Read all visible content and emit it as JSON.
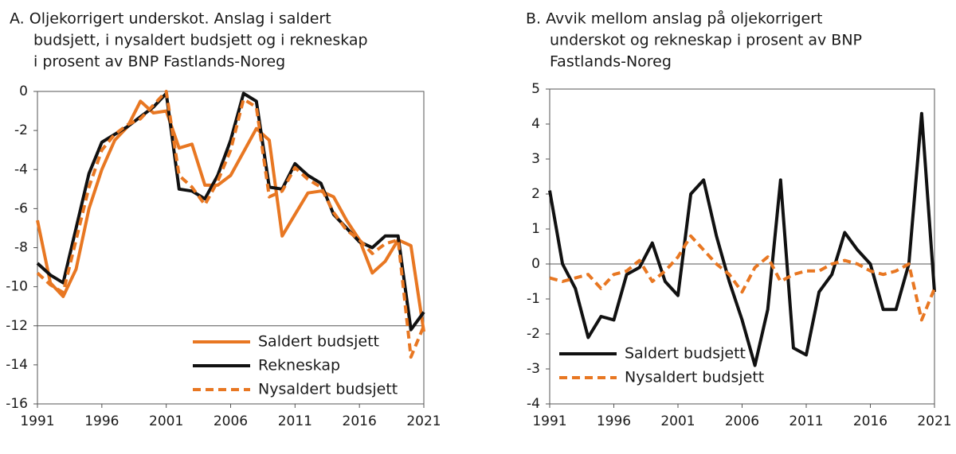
{
  "chart_data": [
    {
      "type": "line",
      "title": [
        "A.  Oljekorrigert underskot. Anslag i saldert",
        "budsjett, i nysaldert budsjett og i rekneskap",
        "i prosent av BNP Fastlands-Noreg"
      ],
      "x": [
        1991,
        1992,
        1993,
        1994,
        1995,
        1996,
        1997,
        1998,
        1999,
        2000,
        2001,
        2002,
        2003,
        2004,
        2005,
        2006,
        2007,
        2008,
        2009,
        2010,
        2011,
        2012,
        2013,
        2014,
        2015,
        2016,
        2017,
        2018,
        2019,
        2020,
        2021
      ],
      "xlim": [
        1991,
        2021
      ],
      "xticks": [
        1991,
        1996,
        2001,
        2006,
        2011,
        2016,
        2021
      ],
      "ylim": [
        -16,
        0
      ],
      "yticks": [
        0,
        -2,
        -4,
        -6,
        -8,
        -10,
        -12,
        -14,
        -16
      ],
      "baseline": -12,
      "legend": "lower right",
      "series": [
        {
          "name": "Saldert budsjett",
          "color": "#e87722",
          "dashed": false,
          "values": [
            -6.6,
            -9.8,
            -10.5,
            -9.1,
            -6.0,
            -4.0,
            -2.5,
            -1.8,
            -0.5,
            -1.1,
            -1.0,
            -2.9,
            -2.7,
            -4.8,
            -4.8,
            -4.3,
            -3.1,
            -1.9,
            -2.5,
            -7.4,
            -6.3,
            -5.2,
            -5.1,
            -5.4,
            -6.6,
            -7.6,
            -9.3,
            -8.7,
            -7.6,
            -7.9,
            -12.3
          ]
        },
        {
          "name": "Rekneskap",
          "color": "#111111",
          "dashed": false,
          "values": [
            -8.8,
            -9.4,
            -9.8,
            -7.0,
            -4.2,
            -2.6,
            -2.2,
            -1.8,
            -1.3,
            -0.8,
            -0.1,
            -5.0,
            -5.1,
            -5.5,
            -4.3,
            -2.5,
            -0.1,
            -0.5,
            -4.9,
            -5.0,
            -3.7,
            -4.3,
            -4.7,
            -6.3,
            -7.0,
            -7.7,
            -8.0,
            -7.4,
            -7.4,
            -12.2,
            -11.3
          ]
        },
        {
          "name": "Nysaldert budsjett",
          "color": "#e87722",
          "dashed": true,
          "values": [
            -9.3,
            -9.9,
            -10.3,
            -7.6,
            -4.9,
            -3.0,
            -2.2,
            -1.7,
            -1.4,
            -0.7,
            0.0,
            -4.3,
            -4.9,
            -5.8,
            -4.6,
            -3.0,
            -0.4,
            -0.8,
            -5.4,
            -5.1,
            -3.9,
            -4.5,
            -4.9,
            -6.2,
            -7.1,
            -7.6,
            -8.3,
            -7.8,
            -7.6,
            -13.6,
            -12.0
          ]
        }
      ]
    },
    {
      "type": "line",
      "title": [
        "B.  Avvik mellom anslag på oljekorrigert",
        "underskot og rekneskap i prosent av BNP",
        "Fastlands-Noreg"
      ],
      "x": [
        1991,
        1992,
        1993,
        1994,
        1995,
        1996,
        1997,
        1998,
        1999,
        2000,
        2001,
        2002,
        2003,
        2004,
        2005,
        2006,
        2007,
        2008,
        2009,
        2010,
        2011,
        2012,
        2013,
        2014,
        2015,
        2016,
        2017,
        2018,
        2019,
        2020,
        2021
      ],
      "xlim": [
        1991,
        2021
      ],
      "xticks": [
        1991,
        1996,
        2001,
        2006,
        2011,
        2016,
        2021
      ],
      "ylim": [
        -4,
        5
      ],
      "yticks": [
        5,
        4,
        3,
        2,
        1,
        0,
        -1,
        -2,
        -3,
        -4
      ],
      "baseline": 0,
      "legend": "lower left",
      "series": [
        {
          "name": "Saldert budsjett",
          "color": "#111111",
          "dashed": false,
          "values": [
            2.1,
            0.0,
            -0.7,
            -2.1,
            -1.5,
            -1.6,
            -0.3,
            -0.1,
            0.6,
            -0.5,
            -0.9,
            2.0,
            2.4,
            0.8,
            -0.5,
            -1.6,
            -2.9,
            -1.3,
            2.4,
            -2.4,
            -2.6,
            -0.8,
            -0.3,
            0.9,
            0.4,
            0.0,
            -1.3,
            -1.3,
            0.0,
            4.3,
            -0.8
          ]
        },
        {
          "name": "Nysaldert budsjett",
          "color": "#e87722",
          "dashed": true,
          "values": [
            -0.4,
            -0.5,
            -0.4,
            -0.3,
            -0.7,
            -0.3,
            -0.2,
            0.1,
            -0.5,
            -0.2,
            0.2,
            0.8,
            0.4,
            0.0,
            -0.3,
            -0.8,
            -0.1,
            0.2,
            -0.5,
            -0.3,
            -0.2,
            -0.2,
            0.0,
            0.1,
            0.0,
            -0.2,
            -0.3,
            -0.2,
            0.0,
            -1.6,
            -0.7
          ]
        }
      ]
    }
  ]
}
